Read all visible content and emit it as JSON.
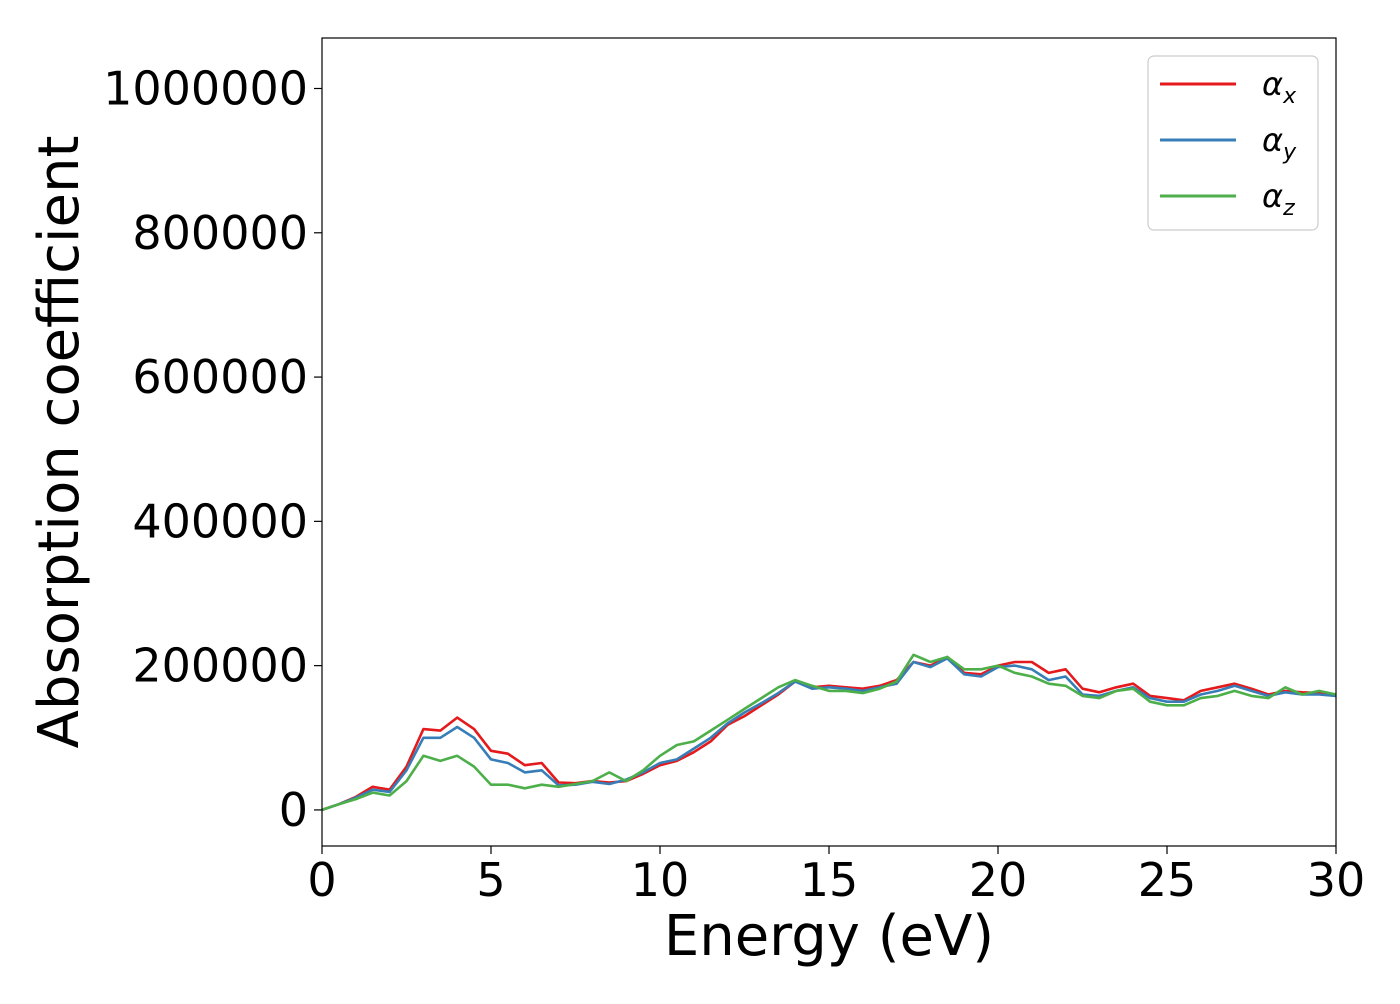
{
  "chart_data": {
    "type": "line",
    "title": "",
    "xlabel": "Energy (eV)",
    "ylabel": "Absorption coefficient",
    "xlim": [
      0,
      30
    ],
    "ylim": [
      -50000,
      1070000
    ],
    "xticks": [
      0,
      5,
      10,
      15,
      20,
      25,
      30
    ],
    "yticks": [
      0,
      200000,
      400000,
      600000,
      800000,
      1000000
    ],
    "grid": false,
    "legend_position": "top-right",
    "series": [
      {
        "name": "αx",
        "symbol": "α",
        "subscript": "x",
        "color": "#e41a1c",
        "x": [
          0,
          0.5,
          1,
          1.5,
          2,
          2.5,
          3,
          3.5,
          4,
          4.5,
          5,
          5.5,
          6,
          6.5,
          7,
          7.5,
          8,
          8.5,
          9,
          9.5,
          10,
          10.5,
          11,
          11.5,
          12,
          12.5,
          13,
          13.5,
          14,
          14.5,
          15,
          15.5,
          16,
          16.5,
          17,
          17.5,
          18,
          18.5,
          19,
          19.5,
          20,
          20.5,
          21,
          21.5,
          22,
          22.5,
          23,
          23.5,
          24,
          24.5,
          25,
          25.5,
          26,
          26.5,
          27,
          27.5,
          28,
          28.5,
          29,
          29.5,
          30
        ],
        "values": [
          0,
          8000,
          18000,
          32000,
          28000,
          60000,
          112000,
          110000,
          128000,
          112000,
          82000,
          78000,
          62000,
          65000,
          38000,
          37000,
          40000,
          38000,
          40000,
          50000,
          62000,
          68000,
          80000,
          95000,
          118000,
          130000,
          145000,
          160000,
          178000,
          170000,
          172000,
          170000,
          168000,
          172000,
          180000,
          205000,
          200000,
          212000,
          190000,
          188000,
          200000,
          205000,
          205000,
          190000,
          195000,
          168000,
          163000,
          170000,
          175000,
          158000,
          155000,
          152000,
          165000,
          170000,
          175000,
          168000,
          160000,
          165000,
          163000,
          162000,
          158000
        ]
      },
      {
        "name": "αy",
        "symbol": "α",
        "subscript": "y",
        "color": "#377eb8",
        "x": [
          0,
          0.5,
          1,
          1.5,
          2,
          2.5,
          3,
          3.5,
          4,
          4.5,
          5,
          5.5,
          6,
          6.5,
          7,
          7.5,
          8,
          8.5,
          9,
          9.5,
          10,
          10.5,
          11,
          11.5,
          12,
          12.5,
          13,
          13.5,
          14,
          14.5,
          15,
          15.5,
          16,
          16.5,
          17,
          17.5,
          18,
          18.5,
          19,
          19.5,
          20,
          20.5,
          21,
          21.5,
          22,
          22.5,
          23,
          23.5,
          24,
          24.5,
          25,
          25.5,
          26,
          26.5,
          27,
          27.5,
          28,
          28.5,
          29,
          29.5,
          30
        ],
        "values": [
          0,
          8000,
          17000,
          28000,
          25000,
          55000,
          100000,
          100000,
          115000,
          100000,
          70000,
          65000,
          52000,
          55000,
          34000,
          35000,
          39000,
          36000,
          42000,
          52000,
          65000,
          70000,
          85000,
          100000,
          120000,
          135000,
          148000,
          162000,
          178000,
          168000,
          170000,
          168000,
          165000,
          170000,
          175000,
          205000,
          198000,
          210000,
          188000,
          185000,
          198000,
          200000,
          195000,
          180000,
          185000,
          160000,
          158000,
          165000,
          170000,
          155000,
          150000,
          150000,
          160000,
          165000,
          172000,
          165000,
          158000,
          163000,
          160000,
          160000,
          158000
        ]
      },
      {
        "name": "αz",
        "symbol": "α",
        "subscript": "z",
        "color": "#4daf4a",
        "x": [
          0,
          0.5,
          1,
          1.5,
          2,
          2.5,
          3,
          3.5,
          4,
          4.5,
          5,
          5.5,
          6,
          6.5,
          7,
          7.5,
          8,
          8.5,
          9,
          9.5,
          10,
          10.5,
          11,
          11.5,
          12,
          12.5,
          13,
          13.5,
          14,
          14.5,
          15,
          15.5,
          16,
          16.5,
          17,
          17.5,
          18,
          18.5,
          19,
          19.5,
          20,
          20.5,
          21,
          21.5,
          22,
          22.5,
          23,
          23.5,
          24,
          24.5,
          25,
          25.5,
          26,
          26.5,
          27,
          27.5,
          28,
          28.5,
          29,
          29.5,
          30
        ],
        "values": [
          0,
          8000,
          15000,
          24000,
          20000,
          40000,
          75000,
          68000,
          75000,
          60000,
          35000,
          35000,
          30000,
          35000,
          32000,
          36000,
          40000,
          52000,
          40000,
          55000,
          75000,
          90000,
          95000,
          110000,
          125000,
          140000,
          155000,
          170000,
          180000,
          172000,
          165000,
          165000,
          162000,
          168000,
          178000,
          215000,
          205000,
          212000,
          195000,
          195000,
          200000,
          190000,
          185000,
          175000,
          172000,
          158000,
          155000,
          165000,
          168000,
          150000,
          145000,
          145000,
          155000,
          158000,
          165000,
          158000,
          155000,
          170000,
          160000,
          165000,
          160000
        ]
      }
    ]
  }
}
